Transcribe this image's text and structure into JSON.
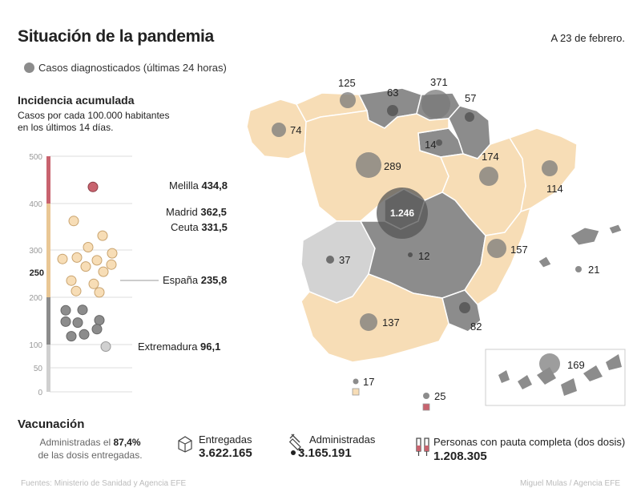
{
  "header": {
    "title": "Situación de la pandemia",
    "date": "A 23 de febrero."
  },
  "legend": {
    "cases_label": "Casos diagnosticados (últimas 24 horas)",
    "cases_color": "#8c8c8c"
  },
  "incidence": {
    "title": "Incidencia acumulada",
    "subtitle_line1": "Casos por cada 100.000 habitantes",
    "subtitle_line2": "en los últimos 14 días.",
    "axis_ticks": [
      "500",
      "400",
      "300",
      "250",
      "200",
      "100",
      "50",
      "0"
    ],
    "ylim": [
      0,
      500
    ],
    "colors": {
      "high": "#c8636e",
      "mid": "#f7ddb6",
      "low": "#8c8c8c",
      "lowest": "#d0d0d0"
    },
    "annotations": [
      {
        "name": "Melilla",
        "value": "434,8"
      },
      {
        "name": "Madrid",
        "value": "362,5"
      },
      {
        "name": "Ceuta",
        "value": "331,5"
      },
      {
        "name": "España",
        "value": "235,8"
      },
      {
        "name": "Extremadura",
        "value": "96,1"
      }
    ]
  },
  "chart_data": {
    "type": "scatter",
    "ylabel": "Casos por cada 100.000 habitantes en los últimos 14 días",
    "ylim": [
      0,
      500
    ],
    "reference": {
      "label": "España",
      "value": 235.8
    },
    "points": [
      {
        "value": 434.8,
        "group": "high",
        "label": "Melilla"
      },
      {
        "value": 362.5,
        "group": "mid",
        "label": "Madrid"
      },
      {
        "value": 331.5,
        "group": "mid",
        "label": "Ceuta"
      },
      {
        "value": 307,
        "group": "mid"
      },
      {
        "value": 294,
        "group": "mid"
      },
      {
        "value": 285,
        "group": "mid"
      },
      {
        "value": 282,
        "group": "mid"
      },
      {
        "value": 279,
        "group": "mid"
      },
      {
        "value": 270,
        "group": "mid"
      },
      {
        "value": 266,
        "group": "mid"
      },
      {
        "value": 255,
        "group": "mid"
      },
      {
        "value": 236,
        "group": "mid"
      },
      {
        "value": 229,
        "group": "mid"
      },
      {
        "value": 214,
        "group": "mid"
      },
      {
        "value": 211,
        "group": "mid"
      },
      {
        "value": 173,
        "group": "low"
      },
      {
        "value": 174,
        "group": "low"
      },
      {
        "value": 152,
        "group": "low"
      },
      {
        "value": 149,
        "group": "low"
      },
      {
        "value": 147,
        "group": "low"
      },
      {
        "value": 133,
        "group": "low"
      },
      {
        "value": 122,
        "group": "low"
      },
      {
        "value": 118,
        "group": "low"
      },
      {
        "value": 96.1,
        "group": "lowest",
        "label": "Extremadura"
      }
    ]
  },
  "map": {
    "cases": [
      {
        "region": "Galicia",
        "value": "74"
      },
      {
        "region": "Asturias",
        "value": "125"
      },
      {
        "region": "Cantabria",
        "value": "63"
      },
      {
        "region": "País Vasco",
        "value": "371"
      },
      {
        "region": "Navarra",
        "value": "57"
      },
      {
        "region": "La Rioja",
        "value": "14"
      },
      {
        "region": "Castilla y León",
        "value": "289"
      },
      {
        "region": "Aragón",
        "value": "174"
      },
      {
        "region": "Cataluña",
        "value": "114"
      },
      {
        "region": "Madrid",
        "value": "1.246"
      },
      {
        "region": "Extremadura",
        "value": "37"
      },
      {
        "region": "Castilla-La Mancha",
        "value": "12"
      },
      {
        "region": "Comunidad Valenciana",
        "value": "157"
      },
      {
        "region": "Baleares",
        "value": "21"
      },
      {
        "region": "Murcia",
        "value": "82"
      },
      {
        "region": "Andalucía",
        "value": "137"
      },
      {
        "region": "Ceuta",
        "value": "17"
      },
      {
        "region": "Melilla",
        "value": "25"
      },
      {
        "region": "Canarias",
        "value": "169"
      }
    ],
    "colors": {
      "mid": "#f7ddb6",
      "low": "#8c8c8c",
      "lowest": "#d3d3d3",
      "bubble": "#7a7a7a"
    }
  },
  "vaccination": {
    "title": "Vacunación",
    "administered_line1_pre": "Administradas el ",
    "administered_pct": "87,4%",
    "administered_line2": "de las dosis entregadas.",
    "delivered_label": "Entregadas",
    "delivered_value": "3.622.165",
    "administered_label": "Administradas",
    "administered_value": "3.165.191",
    "complete_label": "Personas con pauta completa (dos dosis)",
    "complete_value": "1.208.305"
  },
  "footer": {
    "source": "Fuentes: Ministerio de Sanidad y Agencia EFE",
    "credit": "Miguel Mulas / Agencia EFE"
  }
}
